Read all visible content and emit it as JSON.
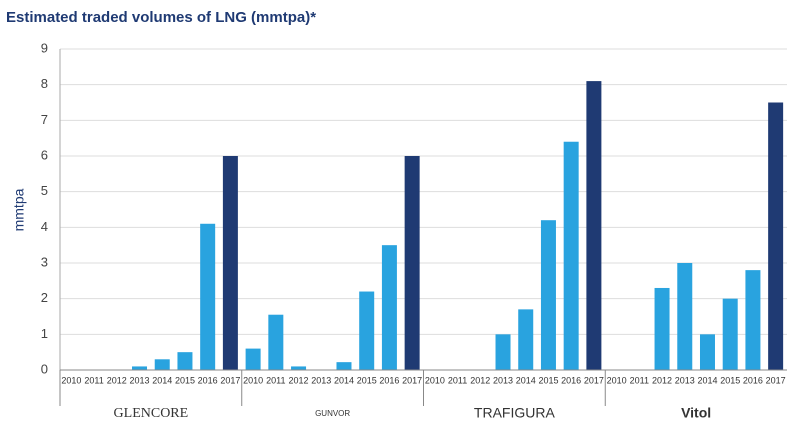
{
  "chart_data": {
    "type": "grouped-bar",
    "title": "Estimated traded volumes of LNG (mmtpa)*",
    "ylabel": "mmtpa",
    "categories": [
      "2010",
      "2011",
      "2012",
      "2013",
      "2014",
      "2015",
      "2016",
      "2017"
    ],
    "bar_colors": [
      "#29a3df",
      "#29a3df",
      "#29a3df",
      "#29a3df",
      "#29a3df",
      "#29a3df",
      "#29a3df",
      "#1f3a73"
    ],
    "groups": [
      {
        "name": "GLENCORE",
        "values": [
          0,
          0,
          0,
          0.1,
          0.3,
          0.5,
          4.1,
          6.0
        ]
      },
      {
        "name": "GUNVOR",
        "values": [
          0.6,
          1.55,
          0.1,
          0,
          0.22,
          2.2,
          3.5,
          6.0
        ]
      },
      {
        "name": "TRAFIGURA",
        "values": [
          0,
          0,
          0,
          1.0,
          1.7,
          4.2,
          6.4,
          8.1
        ]
      },
      {
        "name": "Vitol",
        "values": [
          0,
          0,
          2.3,
          3.0,
          1.0,
          2.0,
          2.8,
          7.5
        ]
      }
    ],
    "ylim": [
      0,
      9
    ],
    "yticks": [
      0,
      1,
      2,
      3,
      4,
      5,
      6,
      7,
      8,
      9
    ],
    "grid": true
  }
}
